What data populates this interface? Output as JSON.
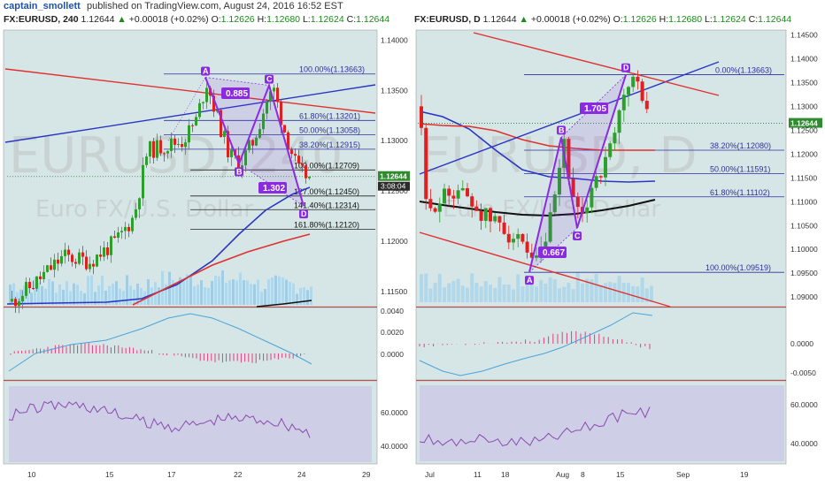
{
  "header": {
    "author": "captain_smollett",
    "published": "published on TradingView.com, August 24, 2016 16:52 EST"
  },
  "left": {
    "symbol": "FX:EURUSD, 240",
    "last": "1.12644",
    "change": "+0.00018 (+0.02%)",
    "open_label": "O:",
    "open": "1.12626",
    "high_label": "H:",
    "high": "1.12680",
    "low_label": "L:",
    "low": "1.12624",
    "close_label": "C:",
    "close": "1.12644",
    "price_ticks": [
      "1.14000",
      "1.13500",
      "1.13000",
      "1.12500",
      "1.12000",
      "1.11500"
    ],
    "last_badge": "1.12644",
    "countdown": "3:08:04",
    "macd_ticks": [
      "0.0040",
      "0.0020",
      "0.0000"
    ],
    "rsi_ticks": [
      "60.0000",
      "40.0000"
    ],
    "x_ticks": [
      "10",
      "15",
      "17",
      "22",
      "24",
      "29"
    ],
    "fib_labels": [
      "100.00%(1.13663)",
      "61.80%(1.13201)",
      "50.00%(1.13058)",
      "38.20%(1.12915)",
      "100.00%(1.12709)",
      "127.00%(1.12450)",
      "141.40%(1.12314)",
      "161.80%(1.12120)"
    ],
    "points": [
      "A",
      "B",
      "C",
      "D"
    ],
    "ratios": [
      "0.885",
      "1.302"
    ],
    "watermark": "EURUSD, 240",
    "watermark_sub": "Euro FX/U.S. Dollar"
  },
  "right": {
    "symbol": "FX:EURUSD, D",
    "last": "1.12644",
    "change": "+0.00018 (+0.02%)",
    "open_label": "O:",
    "open": "1.12626",
    "high_label": "H:",
    "high": "1.12680",
    "low_label": "L:",
    "low": "1.12624",
    "close_label": "C:",
    "close": "1.12644",
    "price_ticks": [
      "1.14500",
      "1.14000",
      "1.13500",
      "1.13000",
      "1.12500",
      "1.12000",
      "1.11500",
      "1.11000",
      "1.10500",
      "1.10000",
      "1.09500",
      "1.09000"
    ],
    "last_badge": "1.12644",
    "macd_ticks": [
      "0.0000",
      "-0.0050"
    ],
    "rsi_ticks": [
      "60.0000",
      "40.0000"
    ],
    "x_ticks": [
      "Jul",
      "11",
      "18",
      "Aug",
      "8",
      "15",
      "Sep",
      "19"
    ],
    "fib_labels": [
      "0.00%(1.13663)",
      "38.20%(1.12080)",
      "50.00%(1.11591)",
      "61.80%(1.11102)",
      "100.00%(1.09519)"
    ],
    "points": [
      "A",
      "B",
      "C",
      "D"
    ],
    "ratios": [
      "1.705",
      "0.667"
    ],
    "watermark": "EURUSD, D",
    "watermark_sub": "Euro FX/U.S. Dollar"
  },
  "colors": {
    "pane_bg": "#d6e6e6",
    "up": "#2e9e2e",
    "down": "#e02020",
    "pattern": "#8a2be2",
    "ma_red": "#e03030",
    "ma_blue": "#2a35c4",
    "ma_black": "#111111",
    "fib": "#2d2f9f",
    "rsi_line": "#8a4ab0",
    "macd_line": "#4aa3d8"
  },
  "chart_data": [
    {
      "type": "candlestick",
      "title": "FX:EURUSD, 240",
      "ylim": [
        1.1135,
        1.141
      ],
      "x_ticks": [
        "10",
        "15",
        "17",
        "22",
        "24",
        "29"
      ],
      "fib_levels": [
        1.13663,
        1.13201,
        1.13058,
        1.12915,
        1.12709,
        1.1245,
        1.12314,
        1.1212
      ],
      "pattern": {
        "A": 1.1363,
        "B": 1.1275,
        "C": 1.1355,
        "D": 1.1235
      }
    },
    {
      "type": "candlestick",
      "title": "FX:EURUSD, D",
      "ylim": [
        1.088,
        1.146
      ],
      "x_ticks": [
        "Jul",
        "11",
        "18",
        "Aug",
        "8",
        "15",
        "Sep",
        "19"
      ],
      "fib_levels": [
        1.13663,
        1.1208,
        1.11591,
        1.11102,
        1.09519
      ],
      "pattern": {
        "A": 1.0952,
        "B": 1.1235,
        "C": 1.1045,
        "D": 1.1366
      }
    }
  ]
}
